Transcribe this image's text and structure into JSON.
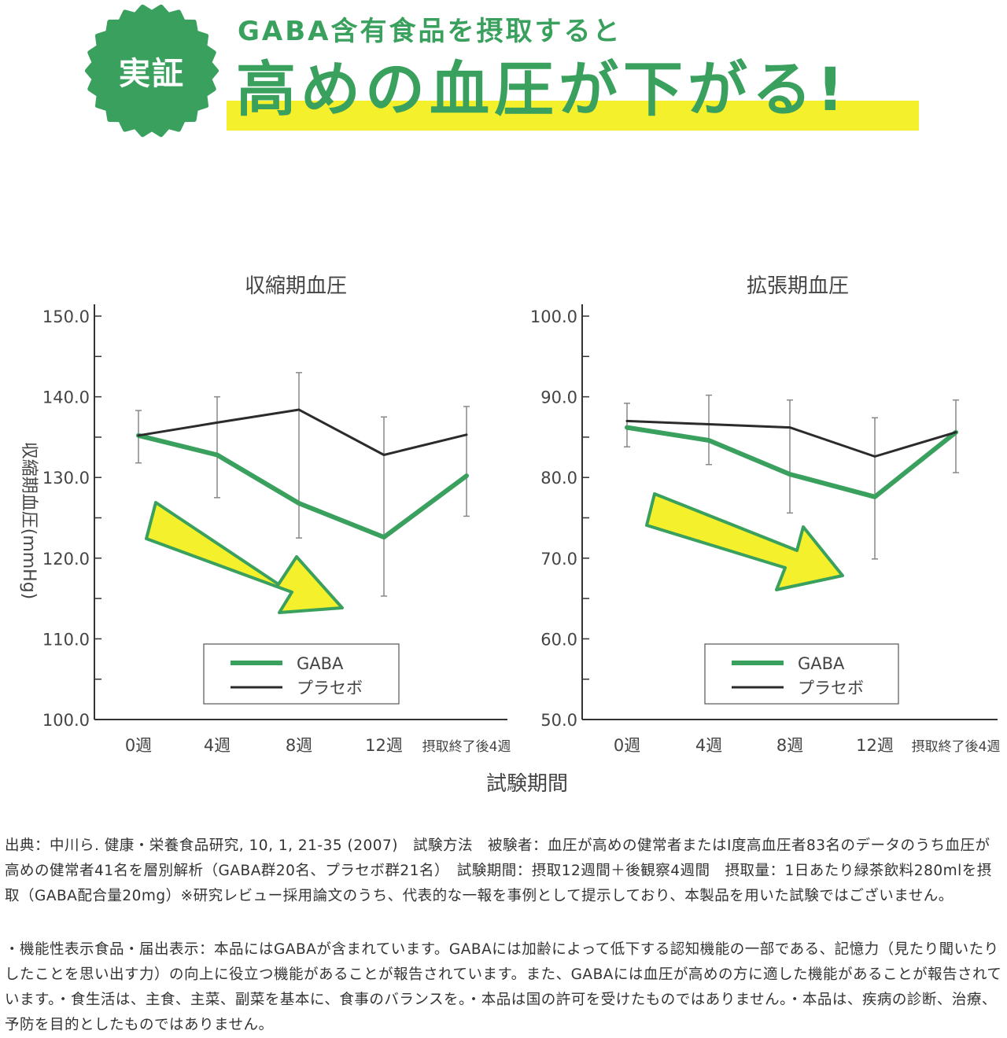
{
  "header": {
    "badge": "実証",
    "subtitle": "GABA含有食品を摂取すると",
    "title": "高めの血圧が下がる!"
  },
  "colors": {
    "gaba": "#3aa05e",
    "placebo": "#2b2b2b",
    "arrow_fill": "#f4f02c",
    "arrow_stroke": "#3aa05e",
    "badge": "#3aa05e"
  },
  "shared": {
    "ylabel": "収縮期血圧(mmHg)",
    "xlabel": "試験期間",
    "categories": [
      "0週",
      "4週",
      "8週",
      "12週",
      "摂取終了後4週"
    ]
  },
  "chart_data": [
    {
      "type": "line",
      "title": "収縮期血圧",
      "categories": [
        "0週",
        "4週",
        "8週",
        "12週",
        "摂取終了後4週"
      ],
      "ylim": [
        100,
        150
      ],
      "yticks": [
        "100.0",
        "110.0",
        "120.0",
        "130.0",
        "140.0",
        "150.0"
      ],
      "legend": "bottom-center",
      "series": [
        {
          "name": "GABA",
          "values": [
            135.2,
            132.8,
            126.8,
            122.6,
            130.2
          ]
        },
        {
          "name": "プラセボ",
          "values": [
            135.2,
            136.8,
            138.4,
            132.8,
            135.3
          ]
        }
      ],
      "error_bars": [
        {
          "cat": 0,
          "low": 131.8,
          "high": 138.3
        },
        {
          "cat": 1,
          "low": 127.5,
          "high": 140.0
        },
        {
          "cat": 2,
          "low": 122.5,
          "high": 143.0
        },
        {
          "cat": 3,
          "low": 115.3,
          "high": 137.5
        },
        {
          "cat": 4,
          "low": 125.2,
          "high": 138.8
        }
      ]
    },
    {
      "type": "line",
      "title": "拡張期血圧",
      "categories": [
        "0週",
        "4週",
        "8週",
        "12週",
        "摂取終了後4週"
      ],
      "ylim": [
        50,
        100
      ],
      "yticks": [
        "50.0",
        "60.0",
        "70.0",
        "80.0",
        "90.0",
        "100.0"
      ],
      "legend": "bottom-center",
      "series": [
        {
          "name": "GABA",
          "values": [
            86.2,
            84.6,
            80.4,
            77.6,
            85.6
          ]
        },
        {
          "name": "プラセボ",
          "values": [
            87.0,
            86.6,
            86.2,
            82.6,
            85.6
          ]
        }
      ],
      "error_bars": [
        {
          "cat": 0,
          "low": 83.8,
          "high": 89.2
        },
        {
          "cat": 1,
          "low": 81.6,
          "high": 90.2
        },
        {
          "cat": 2,
          "low": 75.6,
          "high": 89.6
        },
        {
          "cat": 3,
          "low": 69.9,
          "high": 87.4
        },
        {
          "cat": 4,
          "low": 80.6,
          "high": 89.6
        }
      ]
    }
  ],
  "footnotes": {
    "source": "出典：中川ら. 健康・栄養食品研究, 10, 1, 21-35 (2007)　試験方法　被験者：血圧が高めの健常者またはⅠ度高血圧者83名のデータのうち血圧が高めの健常者41名を層別解析（GABA群20名、プラセボ群21名）　試験期間：摂取12週間＋後観察4週間　摂取量：1日あたり緑茶飲料280mlを摂取（GABA配合量20mg）※研究レビュー採用論文のうち、代表的な一報を事例として提示しており、本製品を用いた試験ではございません。",
    "disclaimer": "・機能性表示食品・届出表示：本品にはGABAが含まれています。GABAには加齢によって低下する認知機能の一部である、記憶力（見たり聞いたりしたことを思い出す力）の向上に役立つ機能があることが報告されています。また、GABAには血圧が高めの方に適した機能があることが報告されています。・食生活は、主食、主菜、副菜を基本に、食事のバランスを。・本品は国の許可を受けたものではありません。・本品は、疾病の診断、治療、予防を目的としたものではありません。"
  }
}
